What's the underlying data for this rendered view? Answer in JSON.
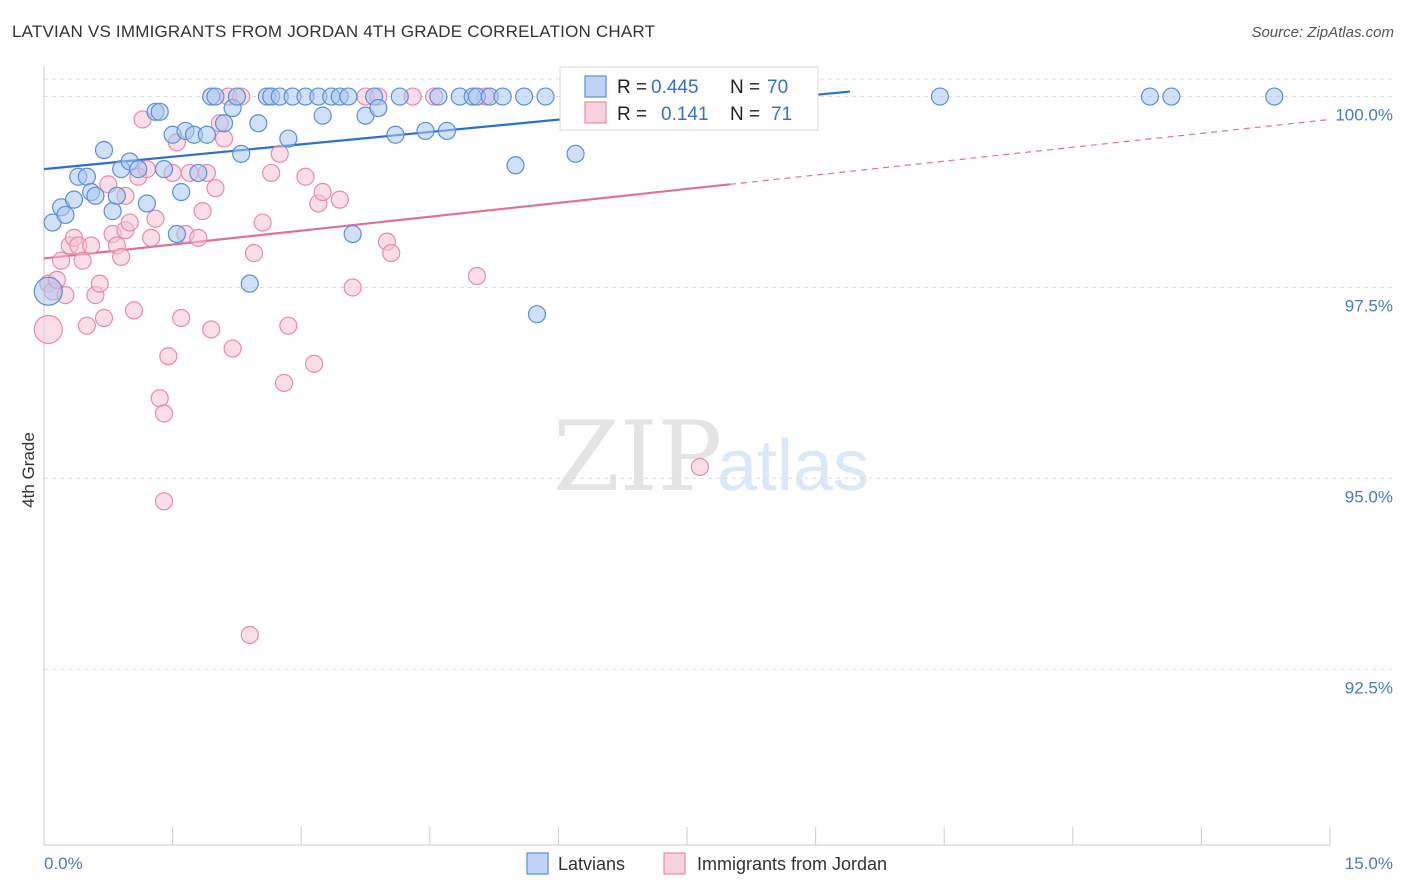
{
  "title": "LATVIAN VS IMMIGRANTS FROM JORDAN 4TH GRADE CORRELATION CHART",
  "source": "Source: ZipAtlas.com",
  "watermark": {
    "zip": "ZIP",
    "atlas": "atlas"
  },
  "colors": {
    "blue": "#5b8fd8",
    "blue_fill": "#a9c6f0",
    "blue_line": "#2d6fd0",
    "pink": "#e88aaa",
    "pink_fill": "#f6c3d4",
    "pink_line": "#e0709a",
    "tick_text": "#4a7ac8",
    "grid": "#dddddd"
  },
  "legend": {
    "rows": [
      {
        "r_label": "R = ",
        "r_value": "0.445",
        "n_label": "N = ",
        "n_value": "70"
      },
      {
        "r_label": "R = ",
        "r_value": "0.141",
        "n_label": "N = ",
        "n_value": "71"
      }
    ]
  },
  "chart_data": {
    "type": "scatter",
    "title": "LATVIAN VS IMMIGRANTS FROM JORDAN 4TH GRADE CORRELATION CHART",
    "xlabel": "",
    "ylabel": "4th Grade",
    "xlim": [
      0,
      15
    ],
    "ylim": [
      90.2,
      100.4
    ],
    "x_tick_labels": [
      "0.0%",
      "15.0%"
    ],
    "y_ticks": [
      {
        "value": 100.0,
        "label": "100.0%"
      },
      {
        "value": 97.5,
        "label": "97.5%"
      },
      {
        "value": 95.0,
        "label": "95.0%"
      },
      {
        "value": 92.5,
        "label": "92.5%"
      }
    ],
    "series": [
      {
        "name": "Latvians",
        "r": 0.445,
        "n": 70,
        "trend": {
          "x0": 0.0,
          "y0": 99.05,
          "x1": 15.0,
          "y1": 100.67,
          "solid_until": 9.4
        },
        "points": [
          [
            0.1,
            98.35
          ],
          [
            0.2,
            98.55
          ],
          [
            0.25,
            98.45
          ],
          [
            0.35,
            98.65
          ],
          [
            0.4,
            98.95
          ],
          [
            0.5,
            98.95
          ],
          [
            0.55,
            98.75
          ],
          [
            0.6,
            98.7
          ],
          [
            0.7,
            99.3
          ],
          [
            0.8,
            98.5
          ],
          [
            0.85,
            98.7
          ],
          [
            0.9,
            99.05
          ],
          [
            1.0,
            99.15
          ],
          [
            1.1,
            99.05
          ],
          [
            1.2,
            98.6
          ],
          [
            1.3,
            99.8
          ],
          [
            1.35,
            99.8
          ],
          [
            1.4,
            99.05
          ],
          [
            1.5,
            99.5
          ],
          [
            1.55,
            98.2
          ],
          [
            1.6,
            98.75
          ],
          [
            1.65,
            99.55
          ],
          [
            1.75,
            99.5
          ],
          [
            1.8,
            99.0
          ],
          [
            1.9,
            99.5
          ],
          [
            1.95,
            100.0
          ],
          [
            2.0,
            100.0
          ],
          [
            2.1,
            99.65
          ],
          [
            2.2,
            99.85
          ],
          [
            2.25,
            100.0
          ],
          [
            2.3,
            99.25
          ],
          [
            2.4,
            97.55
          ],
          [
            2.5,
            99.65
          ],
          [
            2.6,
            100.0
          ],
          [
            2.65,
            100.0
          ],
          [
            2.75,
            100.0
          ],
          [
            2.85,
            99.45
          ],
          [
            2.9,
            100.0
          ],
          [
            3.05,
            100.0
          ],
          [
            3.2,
            100.0
          ],
          [
            3.25,
            99.75
          ],
          [
            3.35,
            100.0
          ],
          [
            3.45,
            100.0
          ],
          [
            3.55,
            100.0
          ],
          [
            3.6,
            98.2
          ],
          [
            3.75,
            99.75
          ],
          [
            3.85,
            100.0
          ],
          [
            3.9,
            99.85
          ],
          [
            4.1,
            99.5
          ],
          [
            4.15,
            100.0
          ],
          [
            4.45,
            99.55
          ],
          [
            4.6,
            100.0
          ],
          [
            4.7,
            99.55
          ],
          [
            4.85,
            100.0
          ],
          [
            5.0,
            100.0
          ],
          [
            5.05,
            100.0
          ],
          [
            5.2,
            100.0
          ],
          [
            5.35,
            100.0
          ],
          [
            5.5,
            99.1
          ],
          [
            5.6,
            100.0
          ],
          [
            5.75,
            97.15
          ],
          [
            5.85,
            100.0
          ],
          [
            6.2,
            99.25
          ],
          [
            6.4,
            100.0
          ],
          [
            7.35,
            100.0
          ],
          [
            7.9,
            100.0
          ],
          [
            10.45,
            100.0
          ],
          [
            12.9,
            100.0
          ],
          [
            13.15,
            100.0
          ],
          [
            14.35,
            100.0
          ]
        ],
        "big_point": [
          0.05,
          97.45
        ]
      },
      {
        "name": "Immigrants from Jordan",
        "r": 0.141,
        "n": 71,
        "trend": {
          "x0": 0.0,
          "y0": 97.88,
          "x1": 15.0,
          "y1": 99.7,
          "solid_until": 8.0
        },
        "points": [
          [
            0.05,
            97.55
          ],
          [
            0.1,
            97.45
          ],
          [
            0.15,
            97.6
          ],
          [
            0.2,
            97.85
          ],
          [
            0.25,
            97.4
          ],
          [
            0.3,
            98.05
          ],
          [
            0.35,
            98.15
          ],
          [
            0.4,
            98.05
          ],
          [
            0.45,
            97.85
          ],
          [
            0.5,
            97.0
          ],
          [
            0.55,
            98.05
          ],
          [
            0.6,
            97.4
          ],
          [
            0.65,
            97.55
          ],
          [
            0.7,
            97.1
          ],
          [
            0.75,
            98.85
          ],
          [
            0.8,
            98.2
          ],
          [
            0.85,
            98.05
          ],
          [
            0.9,
            97.9
          ],
          [
            0.95,
            98.25
          ],
          [
            1.0,
            98.35
          ],
          [
            1.05,
            97.2
          ],
          [
            1.1,
            98.95
          ],
          [
            1.15,
            99.7
          ],
          [
            1.2,
            99.05
          ],
          [
            1.25,
            98.15
          ],
          [
            1.3,
            98.4
          ],
          [
            1.35,
            96.05
          ],
          [
            1.4,
            94.7
          ],
          [
            1.45,
            96.6
          ],
          [
            1.5,
            99.0
          ],
          [
            1.55,
            99.4
          ],
          [
            1.6,
            97.1
          ],
          [
            1.65,
            98.2
          ],
          [
            1.7,
            99.0
          ],
          [
            1.8,
            98.15
          ],
          [
            1.85,
            98.5
          ],
          [
            1.9,
            99.0
          ],
          [
            1.95,
            96.95
          ],
          [
            2.0,
            98.8
          ],
          [
            2.05,
            99.65
          ],
          [
            2.1,
            99.45
          ],
          [
            2.15,
            100.0
          ],
          [
            2.2,
            96.7
          ],
          [
            2.3,
            100.0
          ],
          [
            2.4,
            92.95
          ],
          [
            2.45,
            97.95
          ],
          [
            2.55,
            98.35
          ],
          [
            2.65,
            99.0
          ],
          [
            2.75,
            99.25
          ],
          [
            2.8,
            96.25
          ],
          [
            2.85,
            97.0
          ],
          [
            3.05,
            98.95
          ],
          [
            3.15,
            96.5
          ],
          [
            3.2,
            98.6
          ],
          [
            3.25,
            98.75
          ],
          [
            3.45,
            98.65
          ],
          [
            3.6,
            97.5
          ],
          [
            3.75,
            100.0
          ],
          [
            3.9,
            100.0
          ],
          [
            4.0,
            98.1
          ],
          [
            4.05,
            97.95
          ],
          [
            4.3,
            100.0
          ],
          [
            4.55,
            100.0
          ],
          [
            5.05,
            97.65
          ],
          [
            5.15,
            100.0
          ],
          [
            6.35,
            99.7
          ],
          [
            6.6,
            100.0
          ],
          [
            7.65,
            95.15
          ],
          [
            1.4,
            95.85
          ],
          [
            0.95,
            98.7
          ]
        ],
        "big_point": [
          0.05,
          96.95
        ]
      }
    ],
    "bottom_legend": [
      "Latvians",
      "Immigrants from Jordan"
    ]
  }
}
